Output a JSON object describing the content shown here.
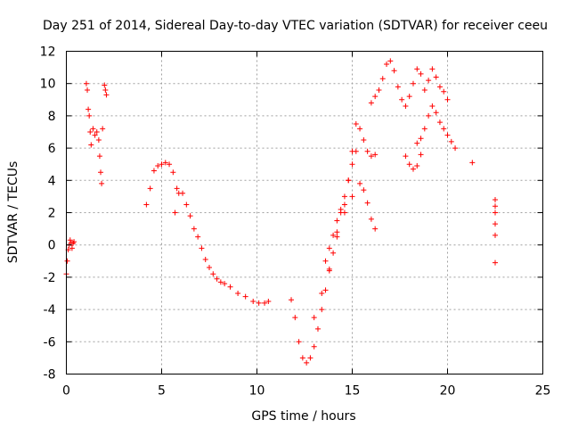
{
  "chart_data": {
    "type": "scatter",
    "title": "Day 251 of 2014, Sidereal Day-to-day VTEC variation (SDTVAR) for receiver ceeu",
    "xlabel": "GPS time / hours",
    "ylabel": "SDTVAR / TECUs",
    "xlim": [
      0,
      25
    ],
    "ylim": [
      -8,
      12
    ],
    "xticks": [
      "0",
      "5",
      "10",
      "15",
      "20",
      "25"
    ],
    "yticks": [
      "-8",
      "-6",
      "-4",
      "-2",
      "0",
      "2",
      "4",
      "6",
      "8",
      "10",
      "12"
    ],
    "grid": true,
    "marker": "+",
    "color": "#ff0000",
    "series": [
      {
        "name": "SDTVAR",
        "x": [
          0,
          0.05,
          0.1,
          0.15,
          0.2,
          0.25,
          0.3,
          0.35,
          0.4,
          1.05,
          1.1,
          1.15,
          1.2,
          1.25,
          1.3,
          1.4,
          1.5,
          1.6,
          1.7,
          1.75,
          1.8,
          1.85,
          1.9,
          2.0,
          2.05,
          2.1,
          4.2,
          4.4,
          4.6,
          4.8,
          5.0,
          5.2,
          5.4,
          5.6,
          5.8,
          5.7,
          5.9,
          6.1,
          6.3,
          6.5,
          6.7,
          6.9,
          7.1,
          7.3,
          7.5,
          7.7,
          7.9,
          8.1,
          8.3,
          8.6,
          9.0,
          9.4,
          9.8,
          10.1,
          10.4,
          10.6,
          11.8,
          12.0,
          12.2,
          12.4,
          12.6,
          12.8,
          13.0,
          13.2,
          13.4,
          13.6,
          13.8,
          14.0,
          14.2,
          14.4,
          14.6,
          14.8,
          15.0,
          15.2,
          15.4,
          15.6,
          15.8,
          16.0,
          16.2,
          16.0,
          16.2,
          16.4,
          16.6,
          16.8,
          17.0,
          17.2,
          17.4,
          17.6,
          17.8,
          18.0,
          18.2,
          18.4,
          18.6,
          18.8,
          19.0,
          19.2,
          19.4,
          19.6,
          19.8,
          20.0,
          18.4,
          18.6,
          18.8,
          19.0,
          19.2,
          19.4,
          19.6,
          19.8,
          20.0,
          20.2,
          20.4,
          13.0,
          13.4,
          13.8,
          14.2,
          14.6,
          15.0,
          15.4,
          15.6,
          15.8,
          16.0,
          16.2,
          13.6,
          13.8,
          14.0,
          14.2,
          14.4,
          14.6,
          14.8,
          15.0,
          15.2,
          17.8,
          18.0,
          18.2,
          18.4,
          18.6,
          21.3,
          22.5,
          22.5,
          22.5,
          22.5,
          22.5,
          22.5
        ],
        "y": [
          -1.8,
          -1.0,
          -0.3,
          0,
          0.3,
          0.1,
          -0.2,
          0.1,
          0.2,
          10.0,
          9.6,
          8.4,
          8.0,
          7.0,
          6.2,
          7.2,
          6.8,
          7.0,
          6.5,
          5.5,
          4.5,
          3.8,
          7.2,
          9.9,
          9.6,
          9.3,
          2.5,
          3.5,
          4.6,
          4.9,
          5.0,
          5.1,
          5.0,
          4.5,
          3.5,
          2.0,
          3.2,
          3.2,
          2.5,
          1.8,
          1.0,
          0.5,
          -0.2,
          -0.9,
          -1.4,
          -1.8,
          -2.1,
          -2.3,
          -2.4,
          -2.6,
          -3.0,
          -3.2,
          -3.5,
          -3.6,
          -3.6,
          -3.5,
          -3.4,
          -4.5,
          -6.0,
          -7.0,
          -7.3,
          -7.0,
          -6.3,
          -5.2,
          -4.0,
          -2.8,
          -1.6,
          -0.5,
          0.8,
          2.0,
          2.5,
          4.0,
          5.8,
          7.5,
          7.2,
          6.5,
          5.8,
          5.5,
          5.6,
          8.8,
          9.2,
          9.6,
          10.3,
          11.2,
          11.4,
          10.8,
          9.8,
          9.0,
          8.6,
          9.2,
          10.0,
          10.9,
          10.6,
          9.6,
          10.2,
          10.9,
          10.4,
          9.8,
          9.5,
          9.0,
          6.3,
          6.6,
          7.2,
          8.0,
          8.6,
          8.2,
          7.6,
          7.2,
          6.8,
          6.4,
          6.0,
          -4.5,
          -3.0,
          -1.5,
          0.5,
          2.0,
          3.0,
          3.8,
          3.4,
          2.6,
          1.6,
          1.0,
          -1.0,
          -0.2,
          0.6,
          1.5,
          2.2,
          3.0,
          4.0,
          5.0,
          5.8,
          5.5,
          5.0,
          4.7,
          4.9,
          5.6,
          5.1,
          2.8,
          2.4,
          2.0,
          1.3,
          0.6,
          -1.1
        ]
      }
    ]
  }
}
